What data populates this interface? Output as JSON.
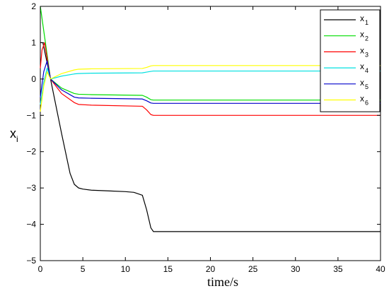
{
  "chart_data": {
    "type": "line",
    "xlabel": "time/s",
    "ylabel": {
      "main": "x",
      "sub": "i"
    },
    "xlim": [
      0,
      40
    ],
    "ylim": [
      -5,
      2
    ],
    "xticks": [
      0,
      5,
      10,
      15,
      20,
      25,
      30,
      35,
      40
    ],
    "yticks": [
      -5,
      -4,
      -3,
      -2,
      -1,
      0,
      1,
      2
    ],
    "grid": false,
    "legend_position": "top-right",
    "series": [
      {
        "name": "x",
        "sub": "1",
        "color": "#000000",
        "x": [
          0,
          0.3,
          1.2,
          2.5,
          3.5,
          4.0,
          4.5,
          5,
          6,
          8,
          10,
          11,
          12,
          12.5,
          13,
          13.3,
          14,
          40
        ],
        "y": [
          1.0,
          1.0,
          0.0,
          -1.5,
          -2.6,
          -2.9,
          -3.0,
          -3.03,
          -3.06,
          -3.08,
          -3.1,
          -3.12,
          -3.2,
          -3.6,
          -4.1,
          -4.2,
          -4.2,
          -4.2
        ]
      },
      {
        "name": "x",
        "sub": "2",
        "color": "#00dd00",
        "x": [
          0,
          1.2,
          2.5,
          4.0,
          4.5,
          6,
          12,
          12.5,
          13,
          13.3,
          14,
          40
        ],
        "y": [
          2.0,
          0.0,
          -0.25,
          -0.4,
          -0.42,
          -0.43,
          -0.45,
          -0.5,
          -0.57,
          -0.58,
          -0.58,
          -0.58
        ]
      },
      {
        "name": "x",
        "sub": "3",
        "color": "#ff0000",
        "x": [
          0,
          0.2,
          0.5,
          1.2,
          2.5,
          4.0,
          4.5,
          6,
          12,
          12.5,
          13,
          13.3,
          14,
          40
        ],
        "y": [
          0.3,
          0.8,
          1.0,
          0.0,
          -0.4,
          -0.65,
          -0.7,
          -0.72,
          -0.75,
          -0.85,
          -0.98,
          -1.0,
          -1.0,
          -1.0
        ]
      },
      {
        "name": "x",
        "sub": "4",
        "color": "#00e0e0",
        "x": [
          0,
          0.4,
          0.8,
          1.2,
          2.5,
          4.0,
          4.5,
          6,
          12,
          12.5,
          13,
          13.3,
          14,
          40
        ],
        "y": [
          -0.7,
          -0.1,
          0.3,
          0.0,
          0.08,
          0.14,
          0.15,
          0.16,
          0.17,
          0.19,
          0.21,
          0.22,
          0.22,
          0.22
        ]
      },
      {
        "name": "x",
        "sub": "5",
        "color": "#0000cc",
        "x": [
          0,
          0.4,
          0.8,
          1.2,
          2.5,
          4.0,
          4.5,
          6,
          12,
          12.5,
          13,
          13.3,
          14,
          40
        ],
        "y": [
          -0.5,
          0.2,
          0.5,
          0.0,
          -0.3,
          -0.5,
          -0.52,
          -0.53,
          -0.55,
          -0.6,
          -0.66,
          -0.67,
          -0.67,
          -0.67
        ]
      },
      {
        "name": "x",
        "sub": "6",
        "color": "#ffff00",
        "x": [
          0,
          0.4,
          0.8,
          1.2,
          2.5,
          4.0,
          4.5,
          6,
          12,
          12.5,
          13,
          13.3,
          14,
          40
        ],
        "y": [
          -0.9,
          -0.2,
          0.2,
          0.0,
          0.15,
          0.25,
          0.27,
          0.28,
          0.29,
          0.32,
          0.36,
          0.37,
          0.37,
          0.37
        ]
      }
    ]
  }
}
